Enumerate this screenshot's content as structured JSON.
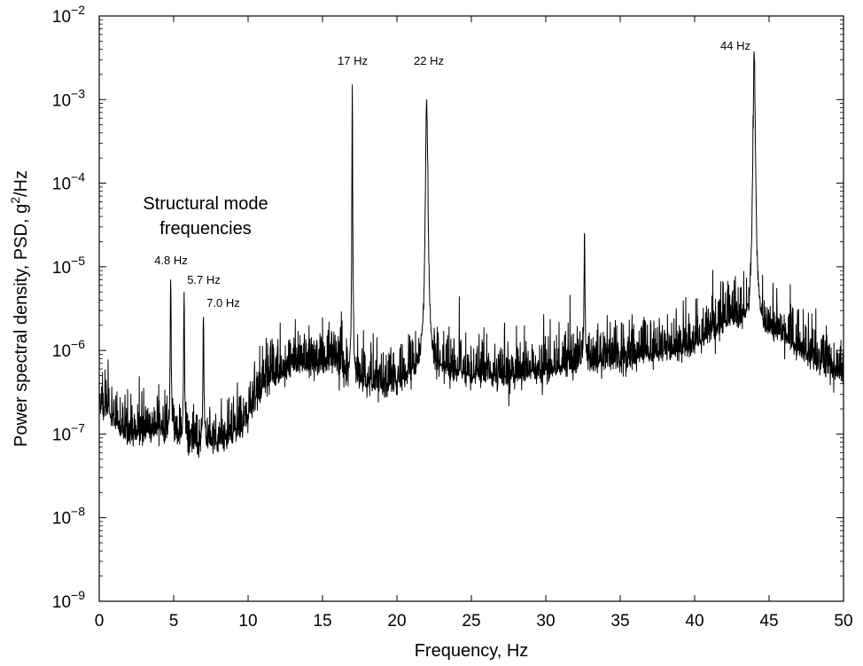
{
  "chart_data": {
    "type": "line",
    "xlabel": "Frequency, Hz",
    "ylabel_main": "Power spectral density, PSD, g",
    "ylabel_sup": "2",
    "ylabel_tail": "/Hz",
    "scale": "log-y",
    "xlim": [
      0,
      50
    ],
    "ylim_exp": [
      -9,
      -2
    ],
    "x_ticks": [
      0,
      5,
      10,
      15,
      20,
      25,
      30,
      35,
      40,
      45,
      50
    ],
    "y_tick_exponents": [
      -2,
      -3,
      -4,
      -5,
      -6,
      -7,
      -8,
      -9
    ],
    "y_tick_base": "10",
    "annotations": {
      "structural_title_1": "Structural mode",
      "structural_title_2": "frequencies",
      "peak_4_8": "4.8 Hz",
      "peak_5_7": "5.7 Hz",
      "peak_7_0": "7.0 Hz",
      "peak_17": "17 Hz",
      "peak_22": "22 Hz",
      "peak_44": "44 Hz"
    },
    "peaks": [
      {
        "x": 4.8,
        "y": 7e-06
      },
      {
        "x": 5.7,
        "y": 5e-06
      },
      {
        "x": 7.0,
        "y": 2.5e-06
      },
      {
        "x": 17.0,
        "y": 0.0015
      },
      {
        "x": 22.0,
        "y": 0.001
      },
      {
        "x": 32.6,
        "y": 2.5e-05
      },
      {
        "x": 44.0,
        "y": 0.0035
      }
    ],
    "baseline_points": [
      {
        "x": 0,
        "y": 2.5e-07
      },
      {
        "x": 2,
        "y": 1e-07
      },
      {
        "x": 4,
        "y": 1.2e-07
      },
      {
        "x": 6,
        "y": 8e-08
      },
      {
        "x": 8,
        "y": 8e-08
      },
      {
        "x": 9.5,
        "y": 1.2e-07
      },
      {
        "x": 11,
        "y": 4e-07
      },
      {
        "x": 13,
        "y": 7e-07
      },
      {
        "x": 16,
        "y": 7e-07
      },
      {
        "x": 18,
        "y": 4e-07
      },
      {
        "x": 20,
        "y": 4e-07
      },
      {
        "x": 21,
        "y": 6e-07
      },
      {
        "x": 23,
        "y": 6e-07
      },
      {
        "x": 27,
        "y": 5e-07
      },
      {
        "x": 30,
        "y": 6e-07
      },
      {
        "x": 35,
        "y": 8e-07
      },
      {
        "x": 40,
        "y": 1.2e-06
      },
      {
        "x": 42.5,
        "y": 2.5e-06
      },
      {
        "x": 46,
        "y": 1.5e-06
      },
      {
        "x": 48,
        "y": 8e-07
      },
      {
        "x": 50,
        "y": 5e-07
      }
    ],
    "series_color": "#000000"
  }
}
